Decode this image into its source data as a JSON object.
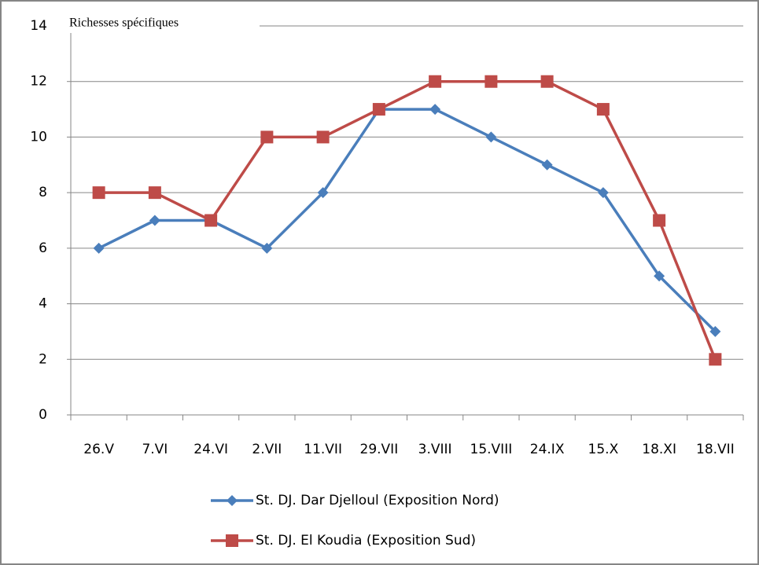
{
  "chart_data": {
    "type": "line",
    "title": "Richesses spécifiques",
    "categories": [
      "26.V",
      "7.VI",
      "24.VI",
      "2.VII",
      "11.VII",
      "29.VII",
      "3.VIII",
      "15.VIII",
      "24.IX",
      "15.X",
      "18.XI",
      "18.VII"
    ],
    "series": [
      {
        "name": "St. DJ. Dar Djelloul (Exposition Nord)",
        "color": "#4a7ebb",
        "marker": "diamond",
        "values": [
          6,
          7,
          7,
          6,
          8,
          11,
          11,
          10,
          9,
          8,
          5,
          3
        ]
      },
      {
        "name": "St. DJ. El Koudia (Exposition Sud)",
        "color": "#be4b48",
        "marker": "square",
        "values": [
          8,
          8,
          7,
          10,
          10,
          11,
          12,
          12,
          12,
          11,
          7,
          2
        ]
      }
    ],
    "ylim": [
      0,
      14
    ],
    "yticks": [
      0,
      2,
      4,
      6,
      8,
      10,
      12,
      14
    ],
    "grid": true,
    "legend": "bottom"
  }
}
